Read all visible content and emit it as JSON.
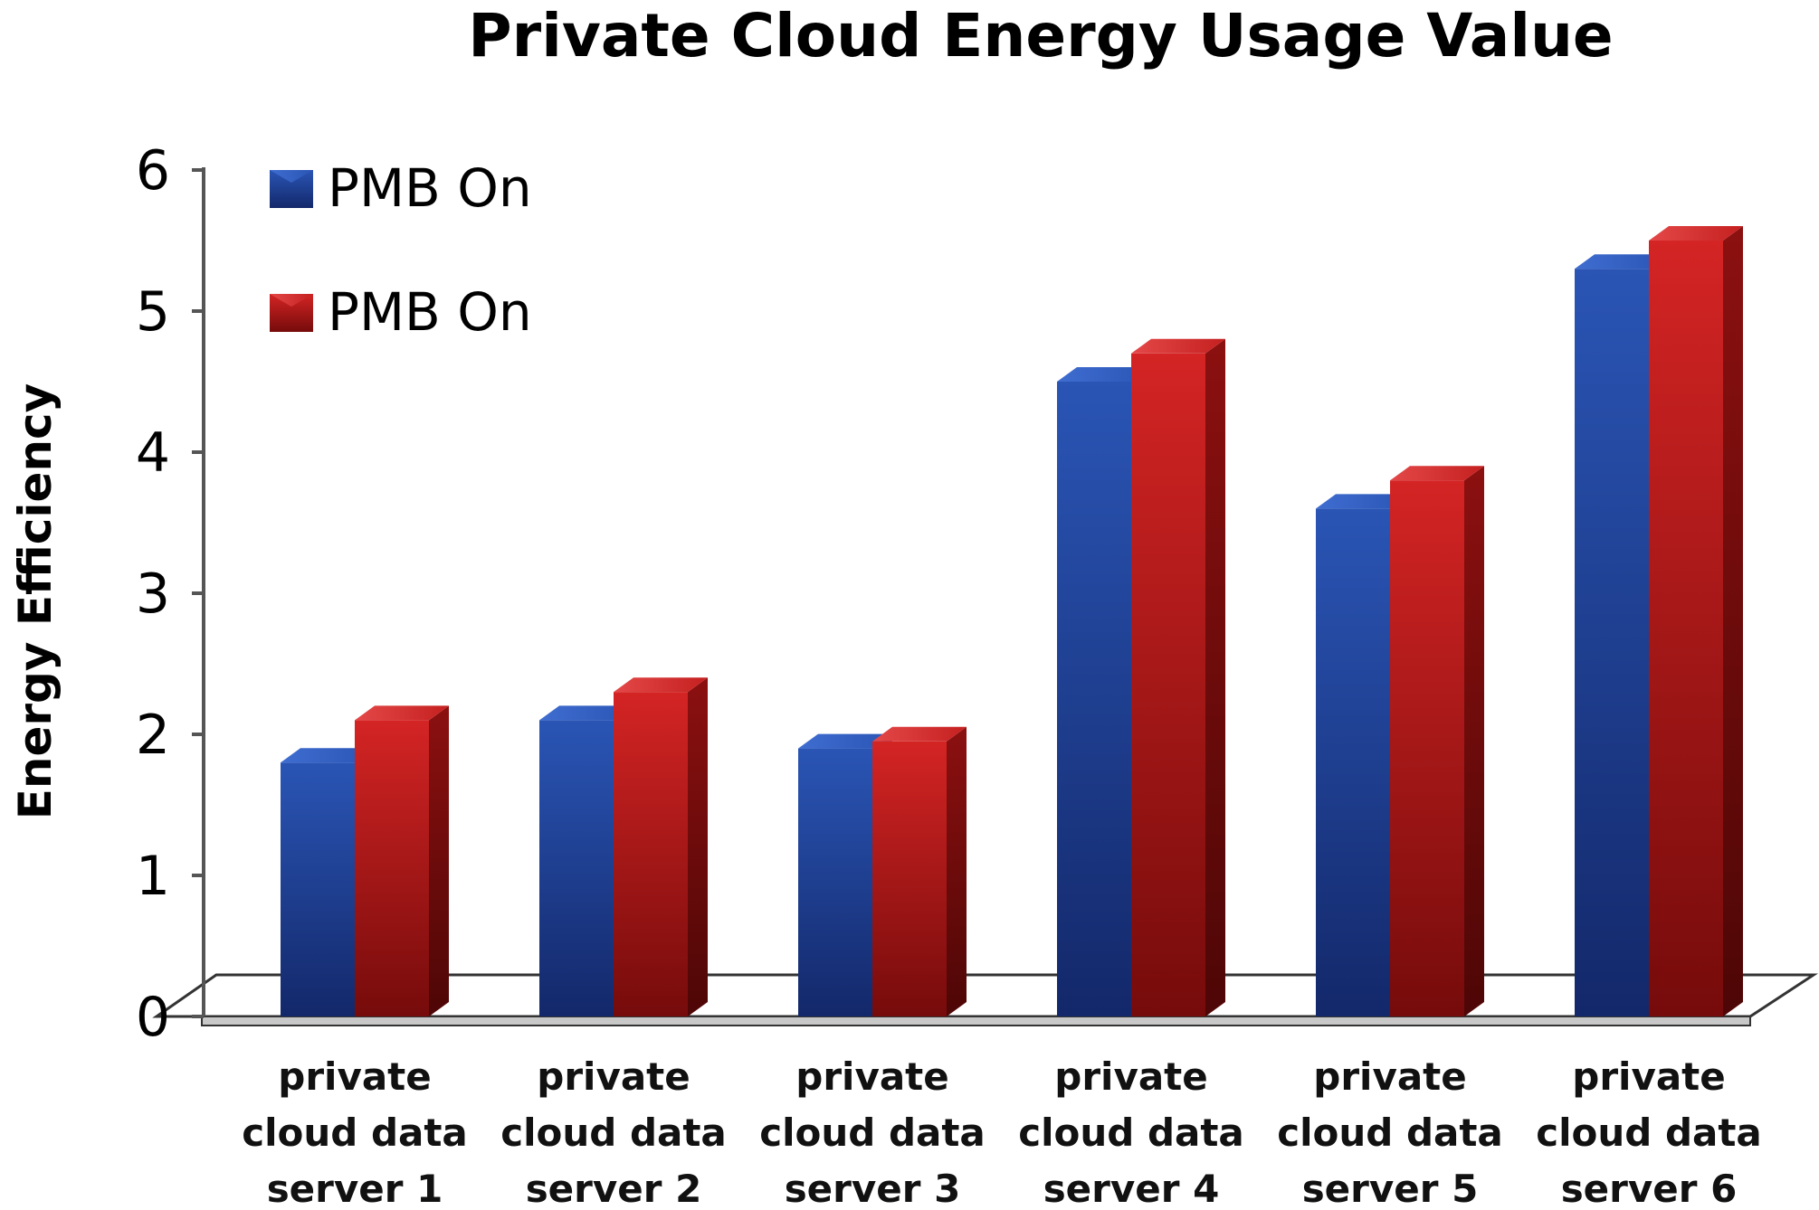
{
  "chart_data": {
    "type": "bar",
    "title": "Private Cloud Energy Usage Value",
    "xlabel": "",
    "ylabel": "Energy Efficiency",
    "ylim": [
      0,
      6
    ],
    "yticks": [
      "0",
      "1",
      "2",
      "3",
      "4",
      "5",
      "6"
    ],
    "categories": [
      [
        "private",
        "cloud data",
        "server 1"
      ],
      [
        "private",
        "cloud data",
        "server 2"
      ],
      [
        "private",
        "cloud data",
        "server 3"
      ],
      [
        "private",
        "cloud data",
        "server 4"
      ],
      [
        "private",
        "cloud data",
        "server 5"
      ],
      [
        "private",
        "cloud data",
        "server 6"
      ]
    ],
    "series": [
      {
        "name": "PMB On",
        "color": "#1c3f95",
        "values": [
          1.8,
          2.1,
          1.9,
          4.5,
          3.6,
          5.3
        ]
      },
      {
        "name": "PMB On",
        "color": "#b01515",
        "values": [
          2.1,
          2.3,
          1.95,
          4.7,
          3.8,
          5.5
        ]
      }
    ],
    "legend": "top-left",
    "grid": false
  }
}
